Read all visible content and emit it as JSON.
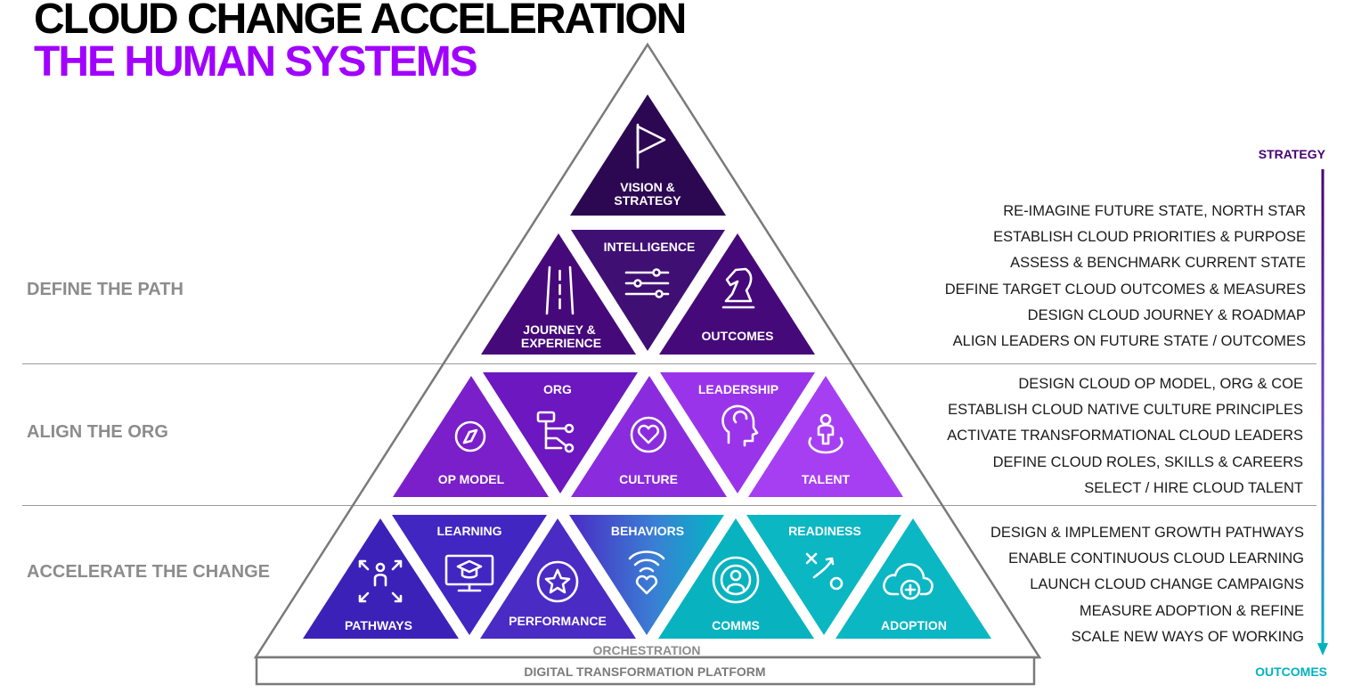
{
  "title": {
    "line1": "CLOUD CHANGE ACCELERATION",
    "line2": "THE HUMAN SYSTEMS"
  },
  "sections": [
    {
      "label": "DEFINE THE PATH"
    },
    {
      "label": "ALIGN THE ORG"
    },
    {
      "label": "ACCELERATE THE CHANGE"
    }
  ],
  "pyramid": {
    "tiles": {
      "vision_strategy": [
        "VISION &",
        "STRATEGY"
      ],
      "journey_experience": [
        "JOURNEY &",
        "EXPERIENCE"
      ],
      "intelligence": "INTELLIGENCE",
      "outcomes": "OUTCOMES",
      "op_model": "OP MODEL",
      "org": "ORG",
      "culture": "CULTURE",
      "leadership": "LEADERSHIP",
      "talent": "TALENT",
      "pathways": "PATHWAYS",
      "learning": "LEARNING",
      "performance": "PERFORMANCE",
      "behaviors": "BEHAVIORS",
      "comms": "COMMS",
      "readiness": "READINESS",
      "adoption": "ADOPTION"
    },
    "orchestration": "ORCHESTRATION",
    "platform": "DIGITAL TRANSFORMATION PLATFORM"
  },
  "right_lists": {
    "define": [
      "RE-IMAGINE FUTURE STATE, NORTH STAR",
      "ESTABLISH CLOUD PRIORITIES & PURPOSE",
      "ASSESS & BENCHMARK CURRENT STATE",
      "DEFINE TARGET CLOUD OUTCOMES & MEASURES",
      "DESIGN CLOUD JOURNEY & ROADMAP",
      "ALIGN LEADERS ON FUTURE STATE / OUTCOMES"
    ],
    "align": [
      "DESIGN CLOUD OP MODEL, ORG & COE",
      "ESTABLISH CLOUD NATIVE CULTURE PRINCIPLES",
      "ACTIVATE TRANSFORMATIONAL CLOUD LEADERS",
      "DEFINE CLOUD ROLES, SKILLS & CAREERS",
      "SELECT / HIRE CLOUD TALENT"
    ],
    "accelerate": [
      "DESIGN & IMPLEMENT GROWTH PATHWAYS",
      "ENABLE CONTINUOUS CLOUD LEARNING",
      "LAUNCH CLOUD CHANGE CAMPAIGNS",
      "MEASURE ADOPTION & REFINE",
      "SCALE NEW WAYS OF WORKING"
    ]
  },
  "axis": {
    "top": "STRATEGY",
    "bottom": "OUTCOMES"
  },
  "colors": {
    "accent_purple": "#a100ff",
    "dark_purple": "#2e0854",
    "teal": "#00b3c0",
    "grey_label": "#8c8c8c"
  }
}
